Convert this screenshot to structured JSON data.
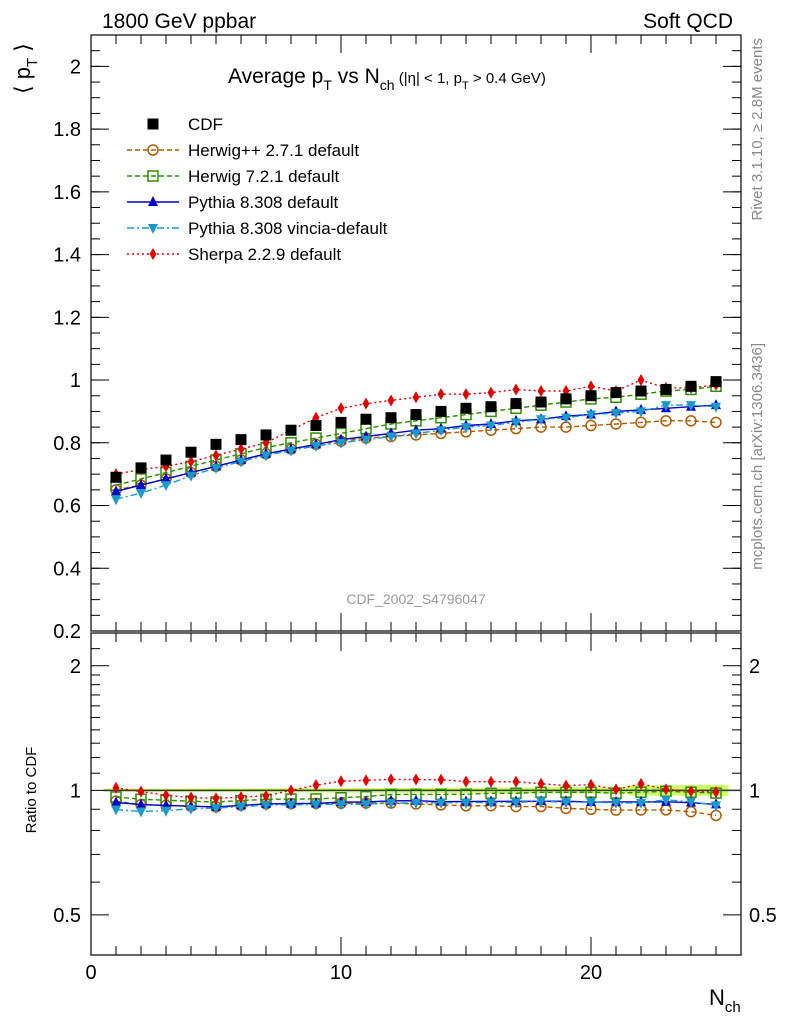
{
  "header": {
    "left": "1800 GeV ppbar",
    "right": "Soft QCD"
  },
  "side_labels": {
    "rivet": "Rivet 3.1.10, ≥ 2.8M events",
    "mcplots": "mcplots.cern.ch [arXiv:1306.3436]"
  },
  "watermark": "CDF_2002_S4796047",
  "chart_data": [
    {
      "type": "line",
      "title_parts": {
        "main": "Average p",
        "sub_t": "T",
        "vs": " vs N",
        "sub_ch": "ch",
        "cuts_open": " (|η| < 1, p",
        "cuts_sub_t": "T",
        "cuts_close": " > 0.4 GeV)"
      },
      "ylabel": "⟨ p",
      "ylabel_sub": "T",
      "ylabel_close": " ⟩",
      "xlim": [
        0,
        26
      ],
      "ylim": [
        0.2,
        2.1
      ],
      "y_ticks": [
        "0.2",
        "0.4",
        "0.6",
        "0.8",
        "1",
        "1.2",
        "1.4",
        "1.6",
        "1.8",
        "2"
      ],
      "x": [
        1,
        2,
        3,
        4,
        5,
        6,
        7,
        8,
        9,
        10,
        11,
        12,
        13,
        14,
        15,
        16,
        17,
        18,
        19,
        20,
        21,
        22,
        23,
        24,
        25
      ],
      "series": [
        {
          "name": "CDF",
          "color": "#000000",
          "marker": "square-filled",
          "line": "none",
          "values": [
            0.69,
            0.72,
            0.745,
            0.77,
            0.795,
            0.81,
            0.825,
            0.84,
            0.855,
            0.865,
            0.875,
            0.88,
            0.89,
            0.9,
            0.91,
            0.915,
            0.925,
            0.93,
            0.94,
            0.95,
            0.96,
            0.965,
            0.97,
            0.98,
            0.995
          ]
        },
        {
          "name": "Herwig++ 2.7.1 default",
          "color": "#b05a00",
          "marker": "circle-open",
          "line": "dashed",
          "values": [
            0.65,
            0.665,
            0.685,
            0.705,
            0.725,
            0.745,
            0.765,
            0.78,
            0.795,
            0.805,
            0.815,
            0.82,
            0.825,
            0.83,
            0.835,
            0.84,
            0.845,
            0.85,
            0.85,
            0.855,
            0.86,
            0.865,
            0.87,
            0.87,
            0.865
          ]
        },
        {
          "name": "Herwig 7.2.1 default",
          "color": "#2e8b00",
          "marker": "square-open",
          "line": "dashed",
          "values": [
            0.665,
            0.685,
            0.705,
            0.725,
            0.745,
            0.765,
            0.785,
            0.8,
            0.815,
            0.83,
            0.845,
            0.86,
            0.87,
            0.88,
            0.89,
            0.9,
            0.91,
            0.92,
            0.93,
            0.94,
            0.945,
            0.955,
            0.965,
            0.97,
            0.98
          ]
        },
        {
          "name": "Pythia 8.308 default",
          "color": "#0000cc",
          "marker": "triangle-up",
          "line": "solid",
          "values": [
            0.645,
            0.665,
            0.685,
            0.705,
            0.725,
            0.745,
            0.765,
            0.78,
            0.795,
            0.81,
            0.82,
            0.83,
            0.84,
            0.845,
            0.855,
            0.86,
            0.87,
            0.875,
            0.885,
            0.89,
            0.9,
            0.905,
            0.91,
            0.915,
            0.92
          ]
        },
        {
          "name": "Pythia 8.308 vincia-default",
          "color": "#1a9ac9",
          "marker": "triangle-down",
          "line": "dashdot",
          "values": [
            0.62,
            0.64,
            0.665,
            0.695,
            0.72,
            0.74,
            0.76,
            0.775,
            0.79,
            0.8,
            0.81,
            0.82,
            0.83,
            0.84,
            0.85,
            0.855,
            0.865,
            0.875,
            0.88,
            0.89,
            0.895,
            0.9,
            0.92,
            0.92,
            0.915
          ]
        },
        {
          "name": "Sherpa 2.2.9 default",
          "color": "#e00000",
          "marker": "diamond",
          "line": "dotted",
          "values": [
            0.7,
            0.715,
            0.725,
            0.74,
            0.76,
            0.78,
            0.8,
            0.84,
            0.88,
            0.91,
            0.925,
            0.935,
            0.945,
            0.955,
            0.955,
            0.96,
            0.97,
            0.965,
            0.965,
            0.98,
            0.965,
            1.0,
            0.975,
            0.975,
            0.985
          ]
        }
      ],
      "legend_position": "top-left",
      "grid": false
    },
    {
      "type": "line",
      "ylabel": "Ratio to CDF",
      "xlabel": "N",
      "xlabel_sub": "ch",
      "xlim": [
        0,
        26
      ],
      "ylim": [
        0.4,
        2.4
      ],
      "scale": "log",
      "y_ticks": [
        "0.5",
        "1",
        "2"
      ],
      "x_ticks": [
        "0",
        "10",
        "20"
      ],
      "band_color": "#ccff66",
      "reference_color": "#333333"
    }
  ]
}
